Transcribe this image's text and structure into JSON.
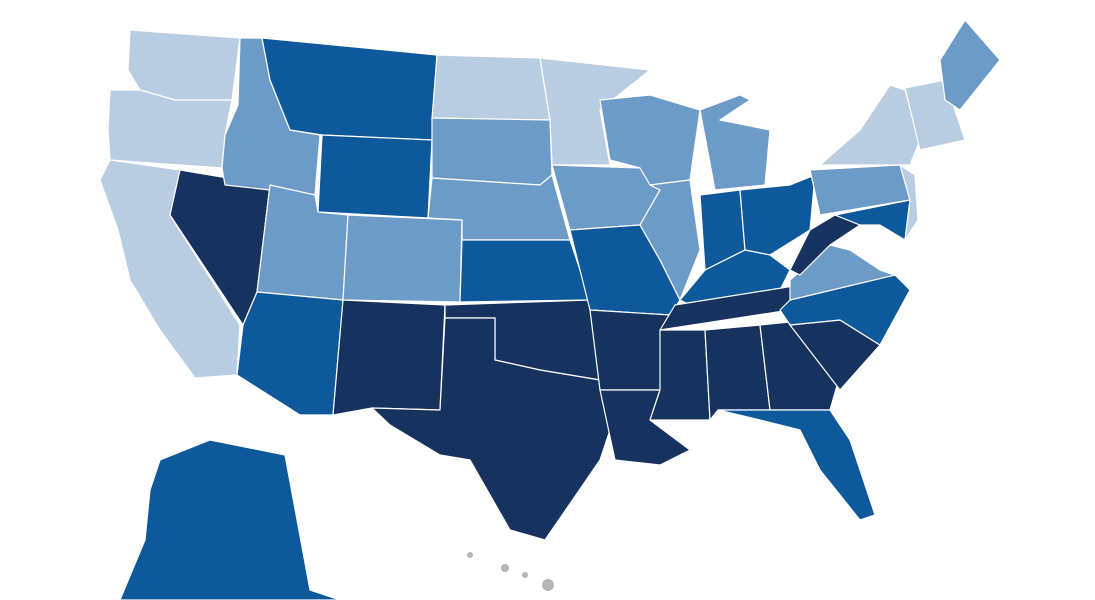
{
  "palette": [
    "#b9cde2",
    "#6d9bc7",
    "#0e589c",
    "#16325e"
  ],
  "border": "#ffffff",
  "islands": "#b5b5b5"
}
